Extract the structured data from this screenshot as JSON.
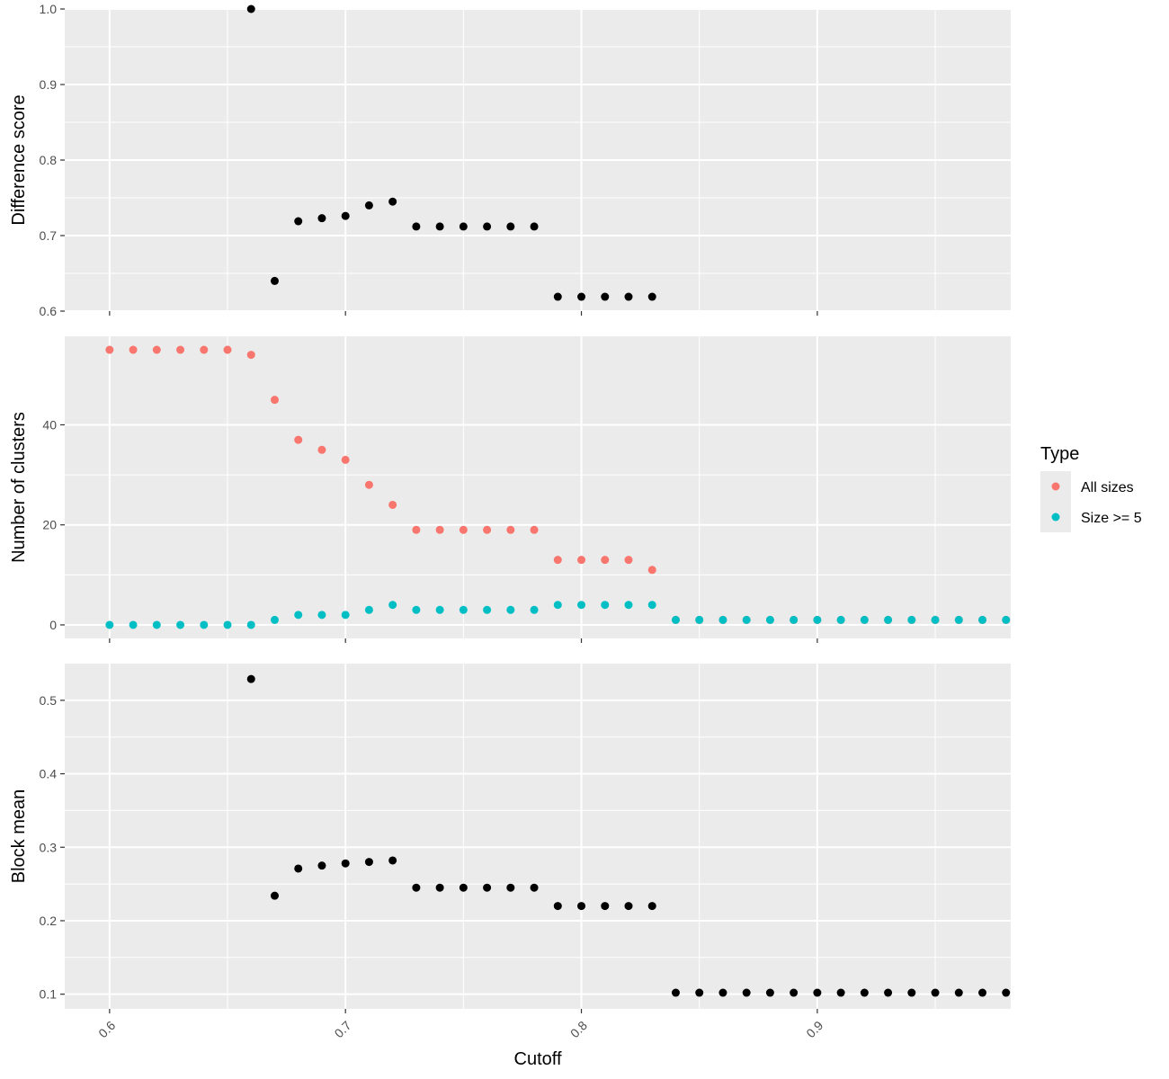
{
  "chart_data": {
    "type": "scatter",
    "xlabel": "Cutoff",
    "x_ticks": [
      0.6,
      0.7,
      0.8,
      0.9
    ],
    "x_tick_labels": [
      "0.6",
      "0.7",
      "0.8",
      "0.9"
    ],
    "xlim": [
      0.581,
      0.982
    ],
    "grid": true,
    "legend": {
      "title": "Type",
      "placement": "right",
      "entries": [
        {
          "label": "All sizes",
          "color": "#F8766D"
        },
        {
          "label": "Size >= 5",
          "color": "#00BFC4"
        }
      ]
    },
    "panels": [
      {
        "ylabel": "Difference score",
        "ylim": [
          0.6,
          1.0
        ],
        "y_ticks": [
          0.6,
          0.7,
          0.8,
          0.9,
          1.0
        ],
        "y_tick_labels": [
          "0.6",
          "0.7",
          "0.8",
          "0.9",
          "1.0"
        ],
        "show_x_labels": false,
        "series": [
          {
            "color": "#000000",
            "x": [
              0.66,
              0.67,
              0.68,
              0.69,
              0.7,
              0.71,
              0.72,
              0.73,
              0.74,
              0.75,
              0.76,
              0.77,
              0.78,
              0.79,
              0.8,
              0.81,
              0.82,
              0.83
            ],
            "y": [
              1.0,
              0.64,
              0.719,
              0.723,
              0.726,
              0.74,
              0.745,
              0.712,
              0.712,
              0.712,
              0.712,
              0.712,
              0.712,
              0.619,
              0.619,
              0.619,
              0.619,
              0.619
            ]
          }
        ]
      },
      {
        "ylabel": "Number of clusters",
        "ylim": [
          -2.7,
          57.7
        ],
        "y_ticks": [
          0,
          20,
          40
        ],
        "y_tick_labels": [
          "0",
          "20",
          "40"
        ],
        "show_x_labels": false,
        "series": [
          {
            "name": "All sizes",
            "color": "#F8766D",
            "x": [
              0.6,
              0.61,
              0.62,
              0.63,
              0.64,
              0.65,
              0.66,
              0.67,
              0.68,
              0.69,
              0.7,
              0.71,
              0.72,
              0.73,
              0.74,
              0.75,
              0.76,
              0.77,
              0.78,
              0.79,
              0.8,
              0.81,
              0.82,
              0.83,
              0.84,
              0.85,
              0.86,
              0.87,
              0.88,
              0.89,
              0.9,
              0.91,
              0.92,
              0.93,
              0.94,
              0.95,
              0.96,
              0.97,
              0.98
            ],
            "y": [
              55,
              55,
              55,
              55,
              55,
              55,
              54,
              45,
              37,
              35,
              33,
              28,
              24,
              19,
              19,
              19,
              19,
              19,
              19,
              13,
              13,
              13,
              13,
              11,
              1,
              1,
              1,
              1,
              1,
              1,
              1,
              1,
              1,
              1,
              1,
              1,
              1,
              1,
              1
            ]
          },
          {
            "name": "Size >= 5",
            "color": "#00BFC4",
            "x": [
              0.6,
              0.61,
              0.62,
              0.63,
              0.64,
              0.65,
              0.66,
              0.67,
              0.68,
              0.69,
              0.7,
              0.71,
              0.72,
              0.73,
              0.74,
              0.75,
              0.76,
              0.77,
              0.78,
              0.79,
              0.8,
              0.81,
              0.82,
              0.83,
              0.84,
              0.85,
              0.86,
              0.87,
              0.88,
              0.89,
              0.9,
              0.91,
              0.92,
              0.93,
              0.94,
              0.95,
              0.96,
              0.97,
              0.98
            ],
            "y": [
              0,
              0,
              0,
              0,
              0,
              0,
              0,
              1,
              2,
              2,
              2,
              3,
              4,
              3,
              3,
              3,
              3,
              3,
              3,
              4,
              4,
              4,
              4,
              4,
              1,
              1,
              1,
              1,
              1,
              1,
              1,
              1,
              1,
              1,
              1,
              1,
              1,
              1,
              1
            ]
          }
        ]
      },
      {
        "ylabel": "Block mean",
        "ylim": [
          0.08,
          0.55
        ],
        "y_ticks": [
          0.1,
          0.2,
          0.3,
          0.4,
          0.5
        ],
        "y_tick_labels": [
          "0.1",
          "0.2",
          "0.3",
          "0.4",
          "0.5"
        ],
        "show_x_labels": true,
        "series": [
          {
            "color": "#000000",
            "x": [
              0.66,
              0.67,
              0.68,
              0.69,
              0.7,
              0.71,
              0.72,
              0.73,
              0.74,
              0.75,
              0.76,
              0.77,
              0.78,
              0.79,
              0.8,
              0.81,
              0.82,
              0.83,
              0.84,
              0.85,
              0.86,
              0.87,
              0.88,
              0.89,
              0.9,
              0.91,
              0.92,
              0.93,
              0.94,
              0.95,
              0.96,
              0.97,
              0.98
            ],
            "y": [
              0.529,
              0.234,
              0.271,
              0.275,
              0.278,
              0.28,
              0.282,
              0.245,
              0.245,
              0.245,
              0.245,
              0.245,
              0.245,
              0.22,
              0.22,
              0.22,
              0.22,
              0.22,
              0.102,
              0.102,
              0.102,
              0.102,
              0.102,
              0.102,
              0.102,
              0.102,
              0.102,
              0.102,
              0.102,
              0.102,
              0.102,
              0.102,
              0.102
            ]
          }
        ]
      }
    ]
  }
}
